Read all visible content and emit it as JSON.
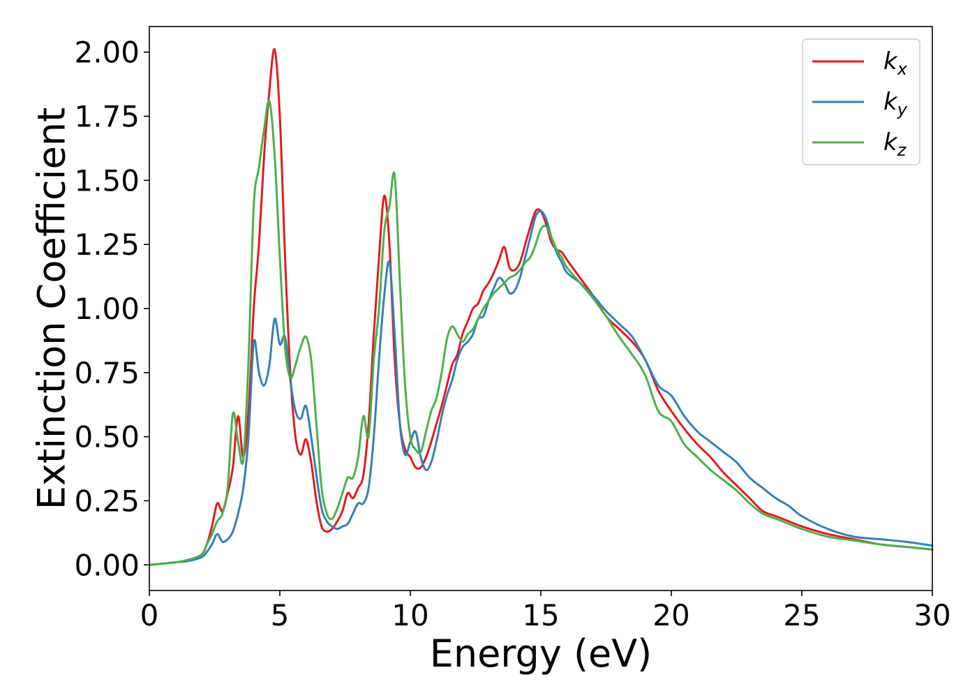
{
  "chart_data": {
    "type": "line",
    "title": "",
    "xlabel": "Energy (eV)",
    "ylabel": "Extinction Coefficient",
    "xlim": [
      0,
      30
    ],
    "ylim": [
      -0.1,
      2.1
    ],
    "xticks": [
      "0",
      "5",
      "10",
      "15",
      "20",
      "25",
      "30"
    ],
    "yticks": [
      "0.00",
      "0.25",
      "0.50",
      "0.75",
      "1.00",
      "1.25",
      "1.50",
      "1.75",
      "2.00"
    ],
    "grid": false,
    "legend_position": "top-right",
    "series": [
      {
        "name": "k_x",
        "legend_base": "k",
        "legend_sub": "x",
        "color": "#e41a1c",
        "x": [
          0,
          1,
          1.5,
          2,
          2.2,
          2.4,
          2.6,
          2.8,
          3.0,
          3.2,
          3.4,
          3.6,
          3.8,
          4.0,
          4.2,
          4.4,
          4.6,
          4.8,
          5.0,
          5.2,
          5.4,
          5.6,
          5.8,
          6.0,
          6.2,
          6.4,
          6.6,
          6.8,
          7.0,
          7.2,
          7.4,
          7.6,
          7.8,
          8.0,
          8.2,
          8.4,
          8.6,
          8.8,
          9.0,
          9.2,
          9.4,
          9.6,
          9.8,
          10.0,
          10.2,
          10.4,
          10.6,
          10.8,
          11.0,
          11.2,
          11.4,
          11.6,
          11.8,
          12.0,
          12.2,
          12.4,
          12.6,
          12.8,
          13.0,
          13.2,
          13.4,
          13.6,
          13.8,
          14.0,
          14.2,
          14.4,
          14.6,
          14.8,
          15.0,
          15.2,
          15.4,
          15.6,
          15.8,
          16.0,
          16.5,
          17.0,
          17.5,
          18.0,
          18.5,
          19.0,
          19.5,
          20.0,
          20.5,
          21.0,
          21.5,
          22.0,
          22.5,
          23.0,
          23.5,
          24.0,
          24.5,
          25.0,
          26.0,
          27.0,
          28.0,
          29.0,
          30.0
        ],
        "values": [
          0,
          0.01,
          0.02,
          0.04,
          0.08,
          0.15,
          0.24,
          0.21,
          0.28,
          0.38,
          0.58,
          0.42,
          0.6,
          1.0,
          1.25,
          1.6,
          1.85,
          2.01,
          1.75,
          1.2,
          0.75,
          0.5,
          0.43,
          0.49,
          0.4,
          0.25,
          0.15,
          0.13,
          0.14,
          0.17,
          0.21,
          0.28,
          0.26,
          0.3,
          0.35,
          0.55,
          0.9,
          1.2,
          1.44,
          1.25,
          0.8,
          0.55,
          0.45,
          0.42,
          0.38,
          0.38,
          0.42,
          0.48,
          0.55,
          0.62,
          0.7,
          0.78,
          0.82,
          0.9,
          0.95,
          1.0,
          1.02,
          1.07,
          1.1,
          1.14,
          1.19,
          1.24,
          1.16,
          1.15,
          1.18,
          1.25,
          1.32,
          1.38,
          1.38,
          1.33,
          1.26,
          1.23,
          1.22,
          1.19,
          1.12,
          1.05,
          0.97,
          0.92,
          0.87,
          0.8,
          0.68,
          0.6,
          0.53,
          0.47,
          0.42,
          0.36,
          0.31,
          0.26,
          0.21,
          0.19,
          0.17,
          0.15,
          0.12,
          0.1,
          0.08,
          0.07,
          0.06
        ]
      },
      {
        "name": "k_y",
        "legend_base": "k",
        "legend_sub": "y",
        "color": "#377eb8",
        "x": [
          0,
          1,
          1.5,
          2,
          2.2,
          2.4,
          2.6,
          2.8,
          3.0,
          3.2,
          3.4,
          3.6,
          3.8,
          4.0,
          4.2,
          4.4,
          4.6,
          4.8,
          5.0,
          5.2,
          5.4,
          5.6,
          5.8,
          6.0,
          6.2,
          6.4,
          6.6,
          6.8,
          7.0,
          7.2,
          7.4,
          7.6,
          7.8,
          8.0,
          8.2,
          8.4,
          8.6,
          8.8,
          9.0,
          9.2,
          9.4,
          9.6,
          9.8,
          10.0,
          10.2,
          10.4,
          10.6,
          10.8,
          11.0,
          11.2,
          11.4,
          11.6,
          11.8,
          12.0,
          12.2,
          12.4,
          12.6,
          12.8,
          13.0,
          13.2,
          13.4,
          13.6,
          13.8,
          14.0,
          14.2,
          14.4,
          14.6,
          14.8,
          15.0,
          15.2,
          15.4,
          15.6,
          15.8,
          16.0,
          16.5,
          17.0,
          17.5,
          18.0,
          18.5,
          19.0,
          19.5,
          20.0,
          20.5,
          21.0,
          21.5,
          22.0,
          22.5,
          23.0,
          23.5,
          24.0,
          24.5,
          25.0,
          26.0,
          27.0,
          28.0,
          29.0,
          30.0
        ],
        "values": [
          0,
          0.01,
          0.015,
          0.03,
          0.05,
          0.08,
          0.12,
          0.09,
          0.1,
          0.13,
          0.2,
          0.3,
          0.5,
          0.87,
          0.75,
          0.7,
          0.78,
          0.96,
          0.86,
          0.89,
          0.72,
          0.6,
          0.57,
          0.62,
          0.5,
          0.35,
          0.22,
          0.17,
          0.15,
          0.14,
          0.15,
          0.16,
          0.2,
          0.24,
          0.24,
          0.3,
          0.5,
          0.8,
          1.05,
          1.18,
          0.9,
          0.55,
          0.43,
          0.48,
          0.52,
          0.42,
          0.37,
          0.4,
          0.48,
          0.58,
          0.66,
          0.72,
          0.8,
          0.85,
          0.87,
          0.9,
          0.96,
          0.97,
          1.03,
          1.08,
          1.12,
          1.1,
          1.06,
          1.07,
          1.12,
          1.2,
          1.28,
          1.36,
          1.38,
          1.35,
          1.28,
          1.22,
          1.18,
          1.14,
          1.1,
          1.05,
          0.99,
          0.94,
          0.89,
          0.8,
          0.7,
          0.66,
          0.58,
          0.52,
          0.48,
          0.44,
          0.4,
          0.34,
          0.3,
          0.26,
          0.23,
          0.19,
          0.14,
          0.11,
          0.1,
          0.09,
          0.075
        ]
      },
      {
        "name": "k_z",
        "legend_base": "k",
        "legend_sub": "z",
        "color": "#4daf4a",
        "x": [
          0,
          1,
          1.5,
          2,
          2.2,
          2.4,
          2.6,
          2.8,
          3.0,
          3.2,
          3.4,
          3.6,
          3.8,
          4.0,
          4.2,
          4.4,
          4.6,
          4.8,
          5.0,
          5.2,
          5.4,
          5.6,
          5.8,
          6.0,
          6.2,
          6.4,
          6.6,
          6.8,
          7.0,
          7.2,
          7.4,
          7.6,
          7.8,
          8.0,
          8.2,
          8.4,
          8.6,
          8.8,
          9.0,
          9.2,
          9.4,
          9.6,
          9.8,
          10.0,
          10.2,
          10.4,
          10.6,
          10.8,
          11.0,
          11.2,
          11.4,
          11.6,
          11.8,
          12.0,
          12.2,
          12.4,
          12.6,
          12.8,
          13.0,
          13.2,
          13.4,
          13.6,
          13.8,
          14.0,
          14.2,
          14.4,
          14.6,
          14.8,
          15.0,
          15.2,
          15.4,
          15.6,
          15.8,
          16.0,
          16.5,
          17.0,
          17.5,
          18.0,
          18.5,
          19.0,
          19.5,
          20.0,
          20.5,
          21.0,
          21.5,
          22.0,
          22.5,
          23.0,
          23.5,
          24.0,
          24.5,
          25.0,
          26.0,
          27.0,
          28.0,
          29.0,
          30.0
        ],
        "values": [
          0,
          0.01,
          0.02,
          0.04,
          0.08,
          0.12,
          0.17,
          0.2,
          0.3,
          0.59,
          0.48,
          0.41,
          0.8,
          1.4,
          1.55,
          1.7,
          1.81,
          1.6,
          1.2,
          0.85,
          0.73,
          0.78,
          0.85,
          0.89,
          0.8,
          0.55,
          0.3,
          0.2,
          0.18,
          0.22,
          0.28,
          0.34,
          0.34,
          0.42,
          0.58,
          0.5,
          0.8,
          1.0,
          1.3,
          1.4,
          1.52,
          1.1,
          0.7,
          0.5,
          0.45,
          0.44,
          0.52,
          0.6,
          0.65,
          0.75,
          0.88,
          0.93,
          0.9,
          0.87,
          0.9,
          0.92,
          0.96,
          1.0,
          1.03,
          1.06,
          1.08,
          1.1,
          1.12,
          1.13,
          1.15,
          1.18,
          1.2,
          1.25,
          1.31,
          1.32,
          1.28,
          1.23,
          1.2,
          1.16,
          1.1,
          1.04,
          0.97,
          0.89,
          0.82,
          0.74,
          0.6,
          0.56,
          0.47,
          0.42,
          0.37,
          0.33,
          0.29,
          0.24,
          0.2,
          0.18,
          0.16,
          0.14,
          0.11,
          0.095,
          0.08,
          0.07,
          0.06
        ]
      }
    ]
  }
}
